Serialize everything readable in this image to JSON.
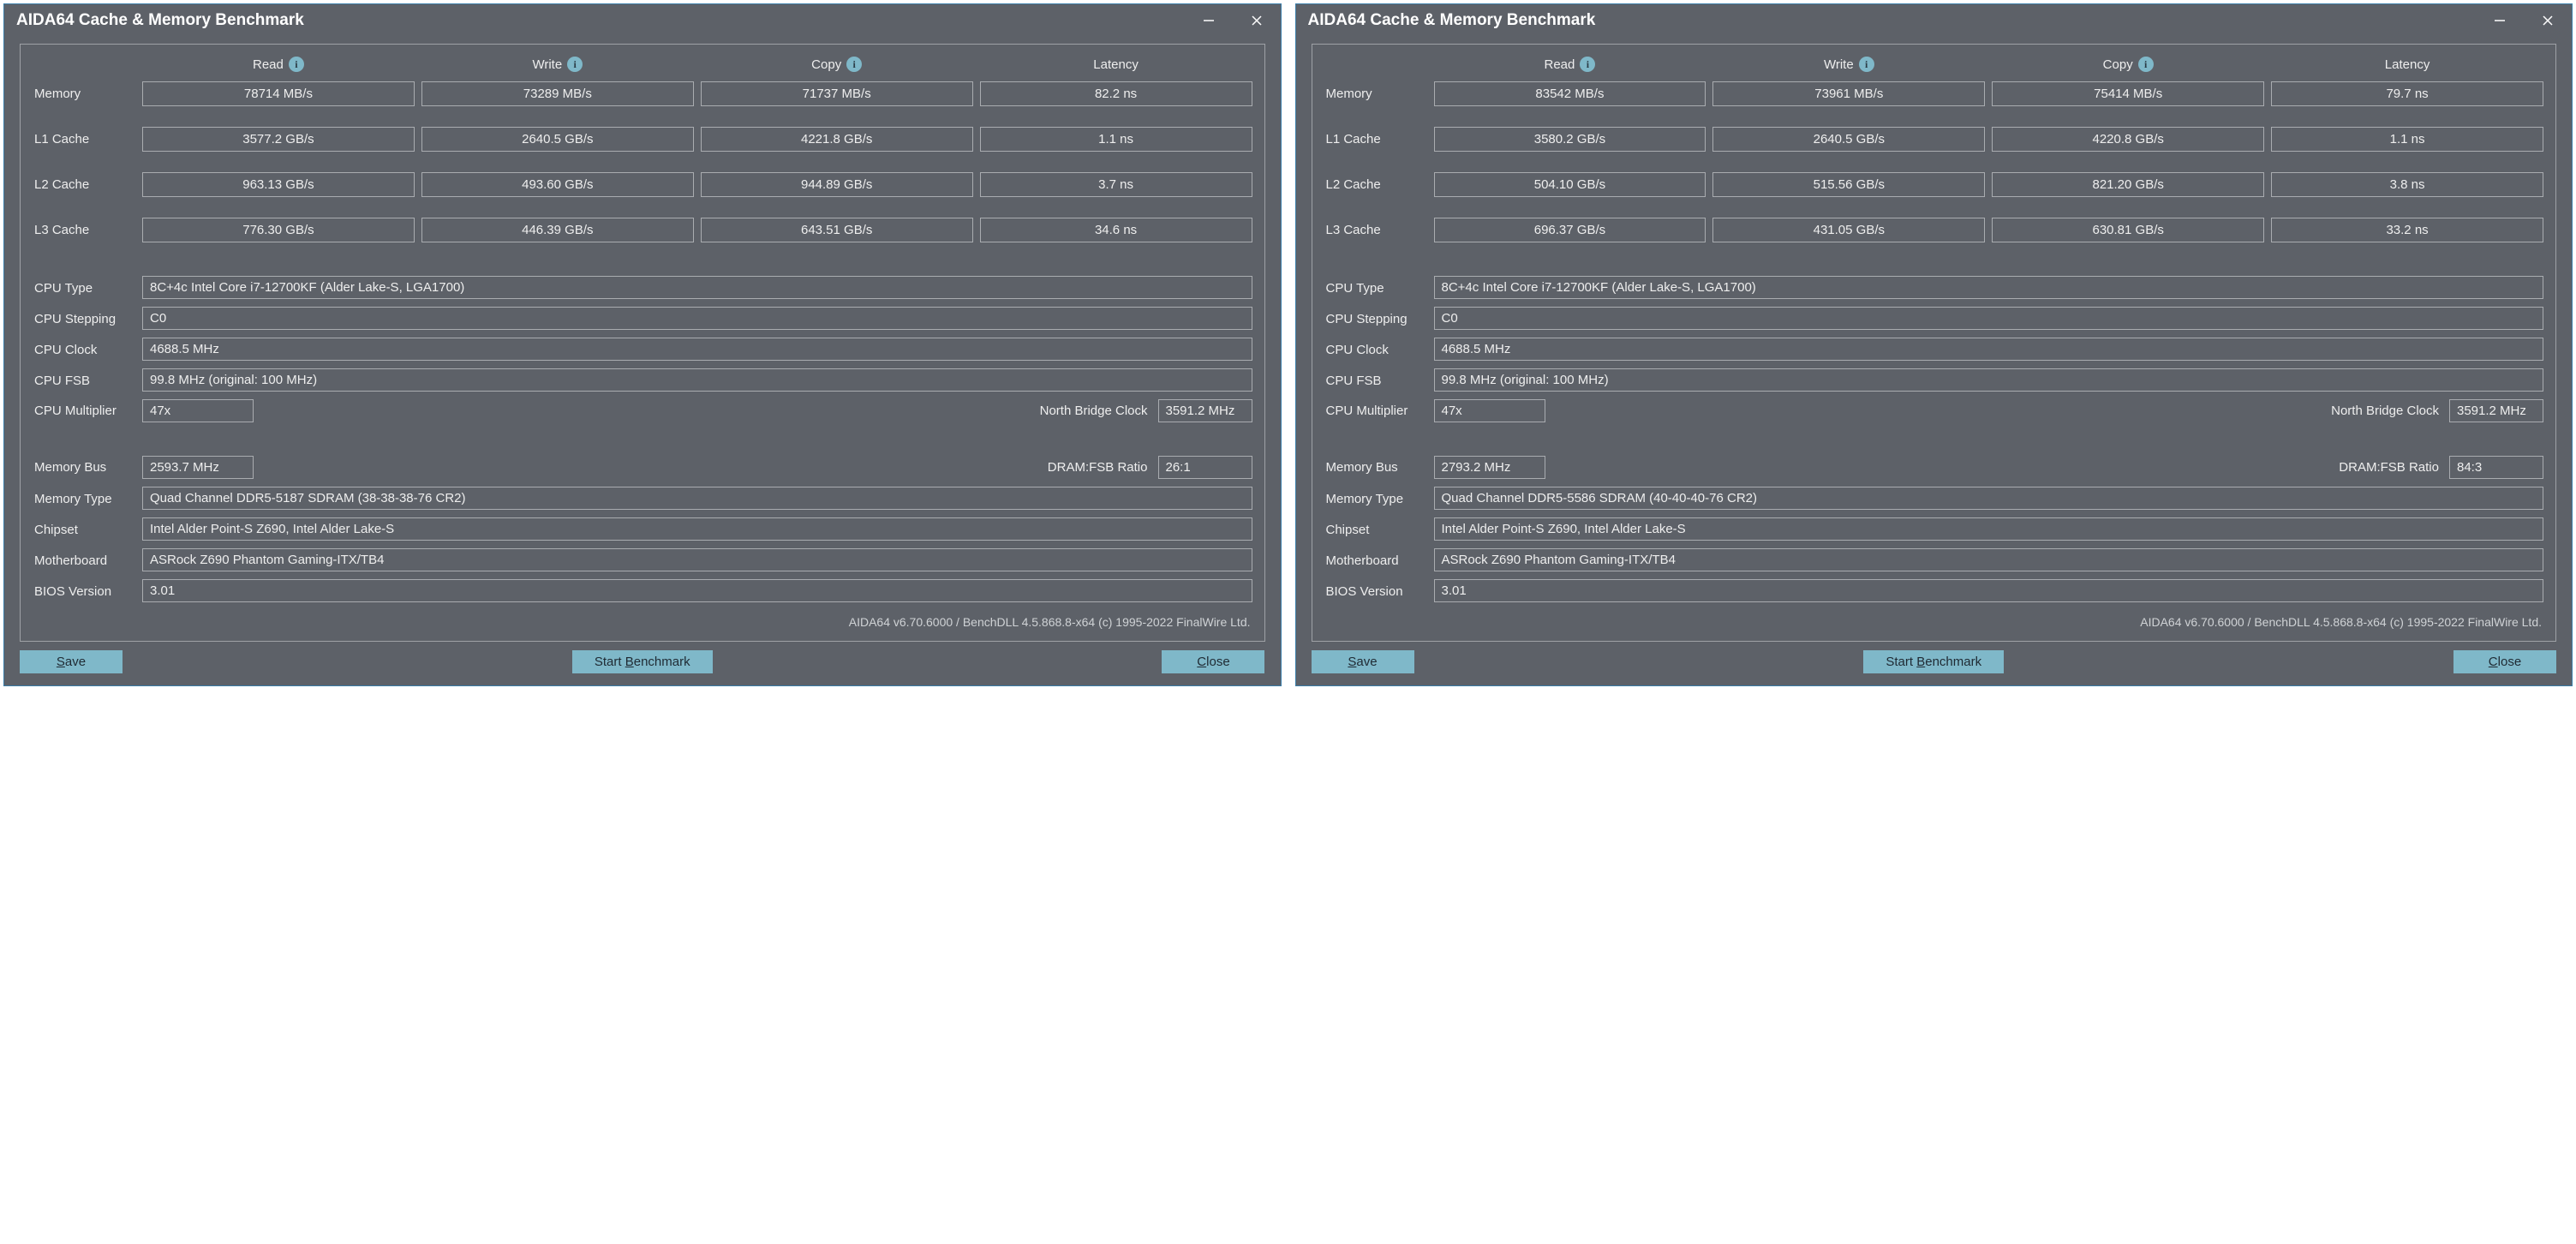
{
  "colors": {
    "window_bg": "#5d6168",
    "window_border": "#3a7da8",
    "panel_border": "#9ea1a6",
    "cell_border": "#a9acb0",
    "btn_bg": "#7fb8c9",
    "btn_text": "#1f2a33",
    "text": "#e8e8e8",
    "footer_text": "#cfd2d5"
  },
  "title": "AIDA64 Cache & Memory Benchmark",
  "columns": [
    "Read",
    "Write",
    "Copy",
    "Latency"
  ],
  "bench_labels": [
    "Memory",
    "L1 Cache",
    "L2 Cache",
    "L3 Cache"
  ],
  "info_labels": [
    "CPU Type",
    "CPU Stepping",
    "CPU Clock",
    "CPU FSB"
  ],
  "multiplier_label": "CPU Multiplier",
  "nb_clock_label": "North Bridge Clock",
  "membus_label": "Memory Bus",
  "ratio_label": "DRAM:FSB Ratio",
  "info2_labels": [
    "Memory Type",
    "Chipset",
    "Motherboard",
    "BIOS Version"
  ],
  "footer": "AIDA64 v6.70.6000 / BenchDLL 4.5.868.8-x64  (c) 1995-2022 FinalWire Ltd.",
  "buttons": {
    "save": "Save",
    "start": "Start Benchmark",
    "close": "Close"
  },
  "panels": [
    {
      "bench": [
        [
          "78714 MB/s",
          "73289 MB/s",
          "71737 MB/s",
          "82.2 ns"
        ],
        [
          "3577.2 GB/s",
          "2640.5 GB/s",
          "4221.8 GB/s",
          "1.1 ns"
        ],
        [
          "963.13 GB/s",
          "493.60 GB/s",
          "944.89 GB/s",
          "3.7 ns"
        ],
        [
          "776.30 GB/s",
          "446.39 GB/s",
          "643.51 GB/s",
          "34.6 ns"
        ]
      ],
      "cpu_type": "8C+4c Intel Core i7-12700KF  (Alder Lake-S, LGA1700)",
      "cpu_stepping": "C0",
      "cpu_clock": "4688.5 MHz",
      "cpu_fsb": "99.8 MHz  (original: 100 MHz)",
      "cpu_mult": "47x",
      "nb_clock": "3591.2 MHz",
      "mem_bus": "2593.7 MHz",
      "ratio": "26:1",
      "mem_type": "Quad Channel DDR5-5187 SDRAM  (38-38-38-76 CR2)",
      "chipset": "Intel Alder Point-S Z690, Intel Alder Lake-S",
      "motherboard": "ASRock Z690 Phantom Gaming-ITX/TB4",
      "bios": "3.01"
    },
    {
      "bench": [
        [
          "83542 MB/s",
          "73961 MB/s",
          "75414 MB/s",
          "79.7 ns"
        ],
        [
          "3580.2 GB/s",
          "2640.5 GB/s",
          "4220.8 GB/s",
          "1.1 ns"
        ],
        [
          "504.10 GB/s",
          "515.56 GB/s",
          "821.20 GB/s",
          "3.8 ns"
        ],
        [
          "696.37 GB/s",
          "431.05 GB/s",
          "630.81 GB/s",
          "33.2 ns"
        ]
      ],
      "cpu_type": "8C+4c Intel Core i7-12700KF  (Alder Lake-S, LGA1700)",
      "cpu_stepping": "C0",
      "cpu_clock": "4688.5 MHz",
      "cpu_fsb": "99.8 MHz  (original: 100 MHz)",
      "cpu_mult": "47x",
      "nb_clock": "3591.2 MHz",
      "mem_bus": "2793.2 MHz",
      "ratio": "84:3",
      "mem_type": "Quad Channel DDR5-5586 SDRAM  (40-40-40-76 CR2)",
      "chipset": "Intel Alder Point-S Z690, Intel Alder Lake-S",
      "motherboard": "ASRock Z690 Phantom Gaming-ITX/TB4",
      "bios": "3.01"
    }
  ]
}
